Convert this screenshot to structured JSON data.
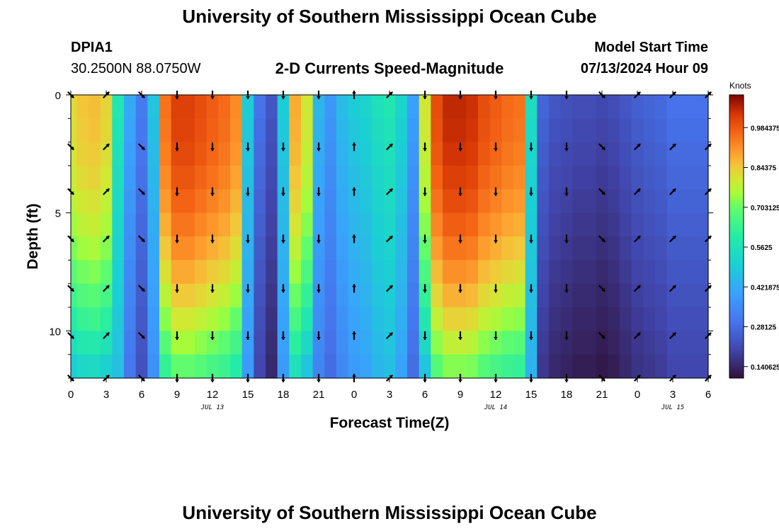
{
  "header": {
    "title": "University of Southern Mississippi Ocean Cube",
    "station_id": "DPIA1",
    "coordinates": "30.2500N  88.0750W",
    "subtitle": "2-D Currents Speed-Magnitude",
    "model_start_label": "Model Start Time",
    "model_start_value": "07/13/2024 Hour 09"
  },
  "footer": {
    "title": "University of Southern Mississippi Ocean Cube"
  },
  "chart_data": {
    "type": "heatmap",
    "title": "2-D Currents Speed-Magnitude",
    "xlabel": "Forecast Time(Z)",
    "ylabel": "Depth (ft)",
    "x_ticks": [
      "0",
      "3",
      "6",
      "9",
      "12",
      "15",
      "18",
      "21",
      "0",
      "3",
      "6",
      "9",
      "12",
      "15",
      "18",
      "21",
      "0",
      "3",
      "6"
    ],
    "x_hours_range": [
      0,
      54
    ],
    "date_labels": [
      {
        "label": "JUL 13",
        "hour": 12
      },
      {
        "label": "JUL 14",
        "hour": 36
      },
      {
        "label": "JUL 15",
        "hour": 51
      }
    ],
    "y_ticks": [
      "0",
      "5",
      "10"
    ],
    "y_tick_values": [
      0,
      5,
      10
    ],
    "ylim": [
      0,
      12
    ],
    "colorbar": {
      "unit": "Knots",
      "range": [
        0.1,
        1.1
      ],
      "tick_labels": [
        "0.984375",
        "0.84375",
        "0.703125",
        "0.5625",
        "0.421875",
        "0.28125",
        "0.140625"
      ],
      "tick_values": [
        0.984375,
        0.84375,
        0.703125,
        0.5625,
        0.421875,
        0.28125,
        0.140625
      ]
    },
    "time_hours": [
      0,
      1,
      2,
      3,
      4,
      5,
      6,
      7,
      8,
      9,
      10,
      11,
      12,
      13,
      14,
      15,
      16,
      17,
      18,
      19,
      20,
      21,
      22,
      23,
      24,
      25,
      26,
      27,
      28,
      29,
      30,
      31,
      32,
      33,
      34,
      35,
      36,
      37,
      38,
      39,
      40,
      41,
      42,
      43,
      44,
      45,
      46,
      47,
      48,
      49,
      50,
      51,
      52,
      53,
      54
    ],
    "depth_levels_ft": [
      0.5,
      1.5,
      2.5,
      3.5,
      4.5,
      5.5,
      6.5,
      7.5,
      8.5,
      9.5,
      10.5,
      11.5
    ],
    "surface_speed_knots": [
      0.82,
      0.85,
      0.86,
      0.83,
      0.58,
      0.42,
      0.32,
      0.48,
      0.95,
      1.02,
      1.02,
      1.0,
      0.98,
      0.96,
      0.92,
      0.5,
      0.3,
      0.24,
      0.5,
      0.88,
      0.8,
      0.45,
      0.38,
      0.46,
      0.5,
      0.52,
      0.56,
      0.58,
      0.52,
      0.4,
      0.8,
      1.0,
      1.05,
      1.05,
      1.04,
      1.0,
      0.98,
      0.96,
      0.95,
      0.55,
      0.27,
      0.24,
      0.23,
      0.22,
      0.22,
      0.21,
      0.22,
      0.24,
      0.26,
      0.27,
      0.28,
      0.3,
      0.3,
      0.3,
      0.3
    ],
    "arrows": {
      "times": [
        0,
        3,
        6,
        9,
        12,
        15,
        18,
        21,
        24,
        27,
        30,
        33,
        36,
        39,
        42,
        45,
        48,
        51,
        54
      ],
      "depths_ft": [
        0,
        2.2,
        4.1,
        6.1,
        8.2,
        10.2,
        12
      ],
      "direction_at_time": [
        "SE",
        "NE",
        "SE",
        "S",
        "S",
        "S",
        "S",
        "S",
        "N",
        "NE",
        "S",
        "S",
        "S",
        "S",
        "S",
        "SE",
        "NE",
        "NE",
        "NE"
      ]
    }
  }
}
